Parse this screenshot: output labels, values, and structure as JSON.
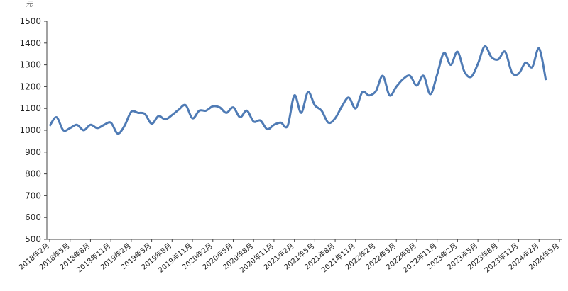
{
  "chart_data": {
    "type": "line",
    "y_unit": "元",
    "categories": [
      "2018年2月",
      null,
      null,
      "2018年5月",
      null,
      null,
      "2018年8月",
      null,
      null,
      "2018年11月",
      null,
      null,
      "2019年2月",
      null,
      null,
      "2019年5月",
      null,
      null,
      "2019年8月",
      null,
      null,
      "2019年11月",
      null,
      null,
      "2020年2月",
      null,
      null,
      "2020年5月",
      null,
      null,
      "2020年8月",
      null,
      null,
      "2020年11月",
      null,
      null,
      "2021年2月",
      null,
      null,
      "2021年5月",
      null,
      null,
      "2021年8月",
      null,
      null,
      "2021年11月",
      null,
      null,
      "2022年2月",
      null,
      null,
      "2022年5月",
      null,
      null,
      "2022年8月",
      null,
      null,
      "2022年11月",
      null,
      null,
      "2023年2月",
      null,
      null,
      "2023年5月",
      null,
      null,
      "2023年8月",
      null,
      null,
      "2023年11月",
      null,
      null,
      "2024年2月",
      null,
      null,
      "2024年5月"
    ],
    "series": [
      {
        "color": "#4f7bb5",
        "values": [
          1020,
          1060,
          1000,
          1010,
          1025,
          1000,
          1025,
          1010,
          1025,
          1035,
          985,
          1020,
          1085,
          1080,
          1075,
          1030,
          1065,
          1050,
          1070,
          1095,
          1115,
          1055,
          1090,
          1090,
          1110,
          1105,
          1080,
          1105,
          1060,
          1090,
          1040,
          1045,
          1005,
          1025,
          1035,
          1020,
          1160,
          1080,
          1175,
          1115,
          1090,
          1035,
          1055,
          1110,
          1150,
          1100,
          1175,
          1160,
          1180,
          1250,
          1160,
          1200,
          1235,
          1250,
          1205,
          1250,
          1165,
          1255,
          1355,
          1300,
          1360,
          1270,
          1245,
          1305,
          1385,
          1335,
          1325,
          1360,
          1265,
          1260,
          1310,
          1290,
          1375,
          1230,
          null,
          null
        ]
      }
    ],
    "ylim": [
      500,
      1500
    ],
    "yticks": [
      500,
      600,
      700,
      800,
      900,
      1000,
      1100,
      1200,
      1300,
      1400,
      1500
    ]
  }
}
